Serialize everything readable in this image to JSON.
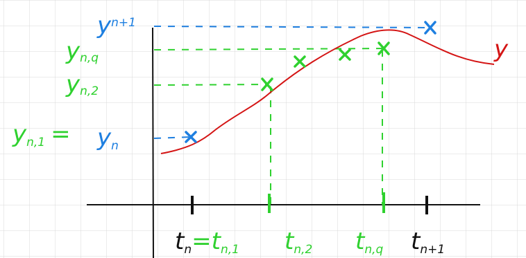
{
  "y_labels": {
    "y_n_plus_1": {
      "main": "y",
      "sub": "n+1"
    },
    "y_n_q": {
      "main": "y",
      "sub": "n,q"
    },
    "y_n_2": {
      "main": "y",
      "sub": "n,2"
    },
    "y_n_1": {
      "main": "y",
      "sub": "n,1"
    },
    "equals": "=",
    "y_n": {
      "main": "y",
      "sub": "n"
    }
  },
  "curve_label": "y",
  "t_labels": {
    "t_n": {
      "main": "t",
      "sub": "n"
    },
    "equals": "=",
    "t_n_1": {
      "main": "t",
      "sub": "n,1"
    },
    "t_n_2": {
      "main": "t",
      "sub": "n,2"
    },
    "t_n_q": {
      "main": "t",
      "sub": "n,q"
    },
    "t_n_plus_1": {
      "main": "t",
      "sub": "n+1"
    }
  }
}
